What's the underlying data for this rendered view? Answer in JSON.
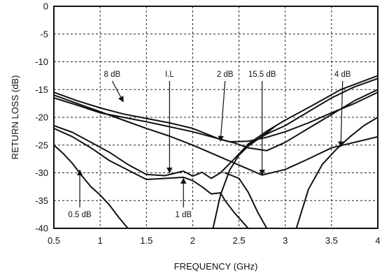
{
  "chart_data": {
    "type": "line",
    "xlabel": "FREQUENCY (GHz)",
    "ylabel": "RETURN LOSS (dB)",
    "xlim": [
      0.5,
      4
    ],
    "ylim": [
      -40,
      0
    ],
    "xticks": [
      0.5,
      1,
      1.5,
      2,
      2.5,
      3,
      3.5,
      4
    ],
    "yticks": [
      0,
      -5,
      -10,
      -15,
      -20,
      -25,
      -30,
      -35,
      -40
    ],
    "xtick_labels": [
      "0.5",
      "1",
      "1.5",
      "2",
      "2.5",
      "3",
      "3.5",
      "4"
    ],
    "ytick_labels": [
      "0",
      "-5",
      "-10",
      "-15",
      "-20",
      "-25",
      "-30",
      "-35",
      "-40"
    ],
    "grid": true,
    "grid_style": "dashed",
    "series": [
      {
        "name": "8 dB",
        "color": "#111111",
        "x": [
          0.5,
          0.75,
          1.0,
          1.25,
          1.5,
          1.75,
          2.0,
          2.15,
          2.3,
          2.45,
          2.6,
          2.8,
          3.0,
          3.25,
          3.5,
          3.75,
          4.0
        ],
        "y": [
          -15.5,
          -17.0,
          -18.3,
          -19.4,
          -20.2,
          -21.0,
          -22.0,
          -23.0,
          -24.0,
          -24.6,
          -25.5,
          -26.0,
          -24.5,
          -22.0,
          -19.5,
          -17.0,
          -15.0
        ]
      },
      {
        "name": "2 dB",
        "color": "#111111",
        "x": [
          0.5,
          0.75,
          1.0,
          1.25,
          1.5,
          1.75,
          2.0,
          2.2,
          2.4,
          2.6,
          2.8,
          3.0,
          3.25,
          3.5,
          3.75,
          4.0
        ],
        "y": [
          -16.5,
          -17.8,
          -19.2,
          -20.0,
          -20.8,
          -21.7,
          -22.6,
          -23.5,
          -24.4,
          -24.3,
          -23.6,
          -22.6,
          -21.0,
          -19.2,
          -17.5,
          -15.5
        ]
      },
      {
        "name": "15.5 dB",
        "color": "#111111",
        "x": [
          0.5,
          0.75,
          1.0,
          1.25,
          1.5,
          1.75,
          2.0,
          2.25,
          2.5,
          2.75,
          3.0,
          3.25,
          3.5,
          3.75,
          4.0
        ],
        "y": [
          -16.0,
          -17.5,
          -19.0,
          -20.5,
          -22.0,
          -23.4,
          -25.0,
          -26.8,
          -28.6,
          -30.4,
          -29.4,
          -27.5,
          -25.5,
          -24.5,
          -23.5
        ]
      },
      {
        "name": "I.L",
        "color": "#111111",
        "x": [
          0.5,
          0.7,
          0.9,
          1.1,
          1.3,
          1.5,
          1.7,
          1.9,
          2.0,
          2.1,
          2.2,
          2.3,
          2.45,
          2.6,
          2.8,
          3.0,
          3.3,
          3.6,
          4.0
        ],
        "y": [
          -21.5,
          -22.7,
          -24.5,
          -26.3,
          -28.5,
          -30.3,
          -30.5,
          -29.7,
          -30.6,
          -29.9,
          -31.0,
          -30.0,
          -27.5,
          -24.8,
          -22.5,
          -20.5,
          -17.8,
          -15.0,
          -12.5
        ]
      },
      {
        "name": "1 dB",
        "color": "#111111",
        "x": [
          0.5,
          0.7,
          0.9,
          1.1,
          1.3,
          1.5,
          1.7,
          1.9,
          2.0,
          2.1,
          2.2,
          2.3,
          2.35,
          2.45,
          2.6,
          2.9
        ],
        "y": [
          -22.0,
          -23.5,
          -25.5,
          -27.8,
          -29.5,
          -31.2,
          -31.0,
          -30.8,
          -31.4,
          -32.5,
          -33.8,
          -33.6,
          -35.0,
          -37.2,
          -40.0,
          -40.0
        ]
      },
      {
        "name": "0.5 dB",
        "color": "#111111",
        "x": [
          0.5,
          0.6,
          0.7,
          0.8,
          0.9,
          1.0,
          1.1,
          1.2,
          1.3
        ],
        "y": [
          -25.0,
          -26.5,
          -28.3,
          -30.5,
          -32.5,
          -34.0,
          -35.8,
          -38.0,
          -40.0
        ]
      },
      {
        "name": "4 dB",
        "color": "#111111",
        "x": [
          3.12,
          3.25,
          3.4,
          3.55,
          3.7,
          3.85,
          4.0
        ],
        "y": [
          -40.0,
          -33.0,
          -28.5,
          -25.8,
          -23.5,
          -21.5,
          -20.0
        ]
      },
      {
        "color": "#111111",
        "x": [
          2.35,
          2.5,
          2.6,
          2.7,
          2.8
        ],
        "y": [
          -30.0,
          -31.0,
          -33.5,
          -37.0,
          -40.0
        ]
      },
      {
        "color": "#111111",
        "x": [
          2.22,
          2.3,
          2.4,
          2.5,
          2.6,
          2.7,
          2.8,
          2.9
        ],
        "y": [
          -40.0,
          -34.0,
          -29.5,
          -26.8,
          -25.2,
          -24.0,
          -22.8,
          -21.5
        ]
      },
      {
        "color": "#111111",
        "x": [
          2.6,
          2.8,
          3.0,
          3.25,
          3.5,
          3.75,
          4.0
        ],
        "y": [
          -25.0,
          -23.0,
          -21.5,
          -19.0,
          -16.5,
          -14.5,
          -13.0
        ]
      }
    ],
    "annotations": [
      {
        "text": "8 dB",
        "label_x": 1.13,
        "label_y": -12.2,
        "arrow_x": 1.25,
        "arrow_y": -17.2
      },
      {
        "text": "I.L",
        "label_x": 1.75,
        "label_y": -12.2,
        "arrow_x": 1.75,
        "arrow_y": -30.0
      },
      {
        "text": "2 dB",
        "label_x": 2.35,
        "label_y": -12.2,
        "arrow_x": 2.3,
        "arrow_y": -24.3
      },
      {
        "text": "15.5 dB",
        "label_x": 2.75,
        "label_y": -12.2,
        "arrow_x": 2.75,
        "arrow_y": -30.4
      },
      {
        "text": "4 dB",
        "label_x": 3.62,
        "label_y": -12.2,
        "arrow_x": 3.6,
        "arrow_y": -25.3
      },
      {
        "text": "0.5 dB",
        "label_x": 0.78,
        "label_y": -37.5,
        "arrow_x": 0.78,
        "arrow_y": -29.5
      },
      {
        "text": "1 dB",
        "label_x": 1.9,
        "label_y": -37.5,
        "arrow_x": 1.9,
        "arrow_y": -31.0
      }
    ]
  }
}
